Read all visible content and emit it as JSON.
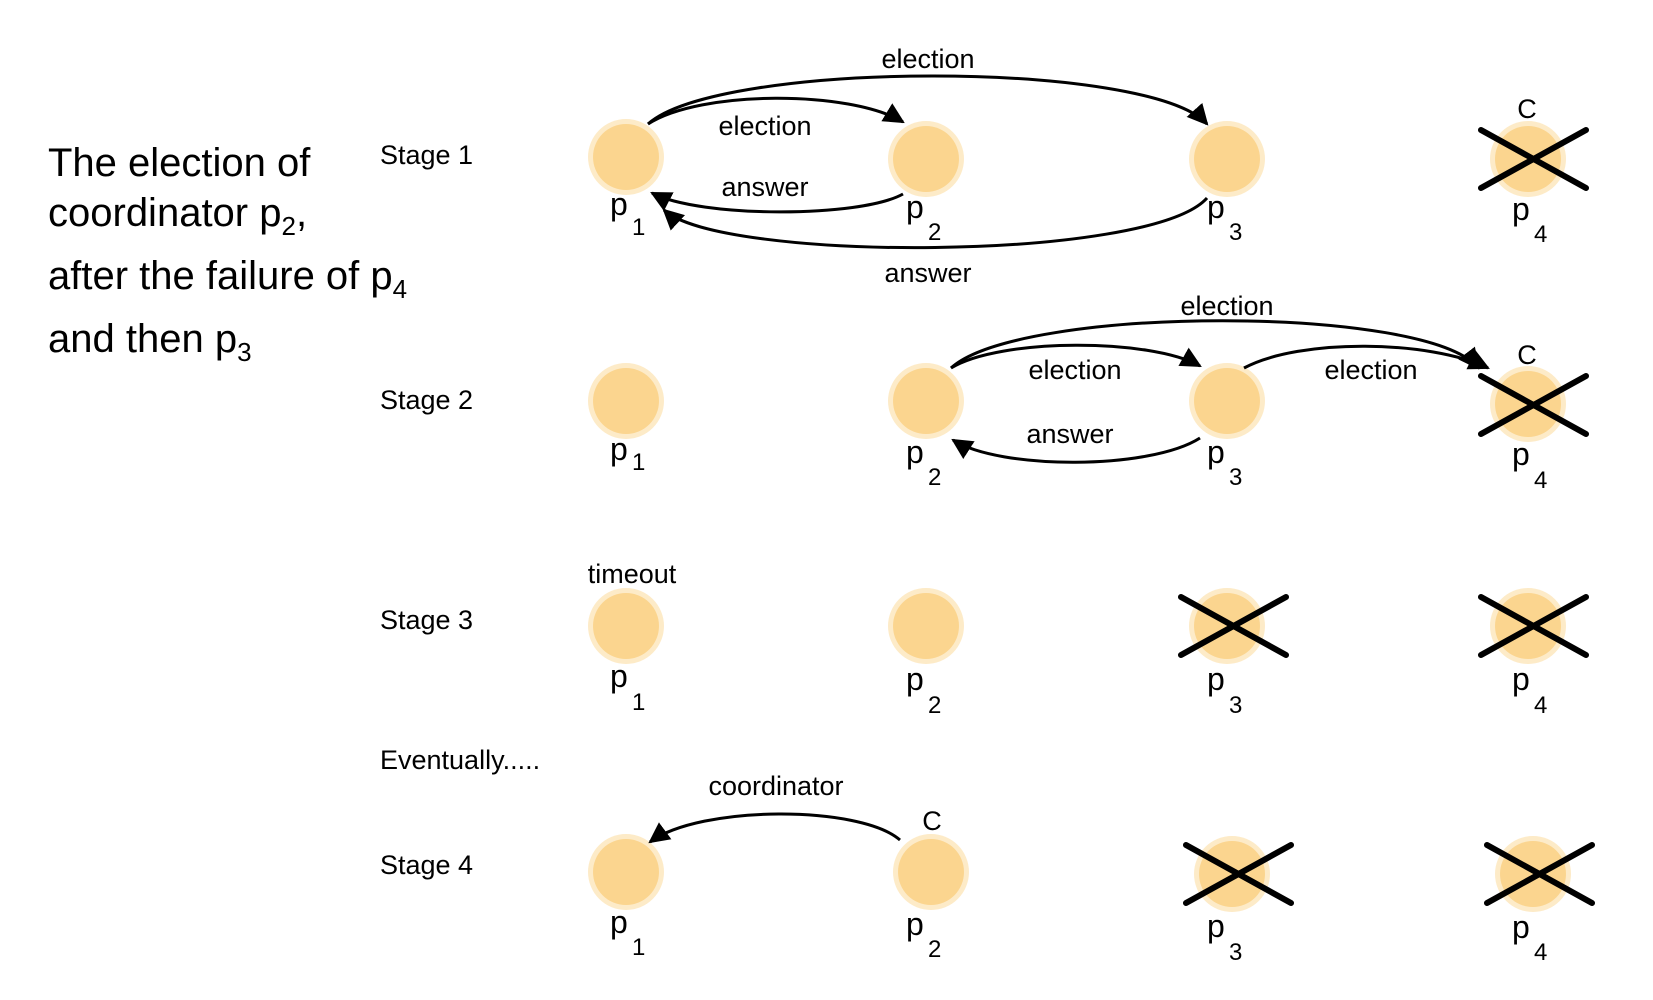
{
  "title": {
    "line1": "The election of",
    "line2_text": "coordinator p",
    "line2_sub": "2",
    "line2_end": ",",
    "line3_text": "after the failure of p",
    "line3_sub": "4",
    "line4_text": "and then p",
    "line4_sub": "3"
  },
  "stages": [
    "Stage 1",
    "Stage 2",
    "Stage 3",
    "Stage 4"
  ],
  "eventually": "Eventually.....",
  "process_letter": "p",
  "process_numbers": [
    "1",
    "2",
    "3",
    "4"
  ],
  "coordinator_mark": "C",
  "messages": {
    "election": "election",
    "answer": "answer",
    "timeout": "timeout",
    "coordinator": "coordinator"
  },
  "colors": {
    "node_fill": "#FBD58F",
    "node_halo": "#FDEBC8",
    "stroke": "#000000"
  }
}
